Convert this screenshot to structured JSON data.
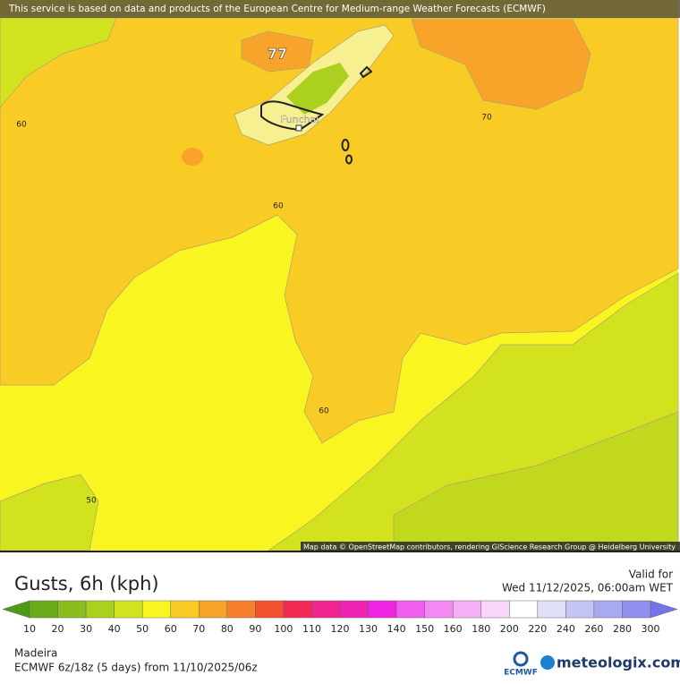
{
  "banner": "This service is based on data and products of the European Centre for Medium-range Weather Forecasts (ECMWF)",
  "map": {
    "max_label": "77",
    "city": "Funchal",
    "contour_labels": [
      "60",
      "70",
      "60",
      "60",
      "50"
    ],
    "attribution": "Map data © OpenStreetMap contributors, rendering GIScience Research Group @ Heidelberg University"
  },
  "title": "Gusts, 6h (kph)",
  "valid_label": "Valid for",
  "valid_time": "Wed 11/12/2025, 06:00am WET",
  "legend": {
    "labels": [
      10,
      20,
      30,
      40,
      50,
      60,
      70,
      80,
      90,
      100,
      110,
      120,
      130,
      140,
      150,
      160,
      180,
      200,
      220,
      240,
      260,
      280,
      300
    ],
    "colors": [
      "#4e9a12",
      "#6aab1c",
      "#8cbc1e",
      "#acd020",
      "#d3e21e",
      "#f8f520",
      "#f9cb25",
      "#f8a42a",
      "#f67f2b",
      "#f2502e",
      "#f02a53",
      "#f0248f",
      "#f023b5",
      "#ef23e2",
      "#f05ef0",
      "#f389f3",
      "#f6b0f6",
      "#f9d5fa",
      "#ffffff",
      "#e0e0f8",
      "#c5c5f5",
      "#a9a9f1",
      "#8f8fee",
      "#7474ea"
    ]
  },
  "region": "Madeira",
  "model_run": "ECMWF 6z/18z (5 days) from 11/10/2025/06z",
  "logos": {
    "ecmwf": "ECMWF",
    "meteologix": "meteologix.com"
  }
}
